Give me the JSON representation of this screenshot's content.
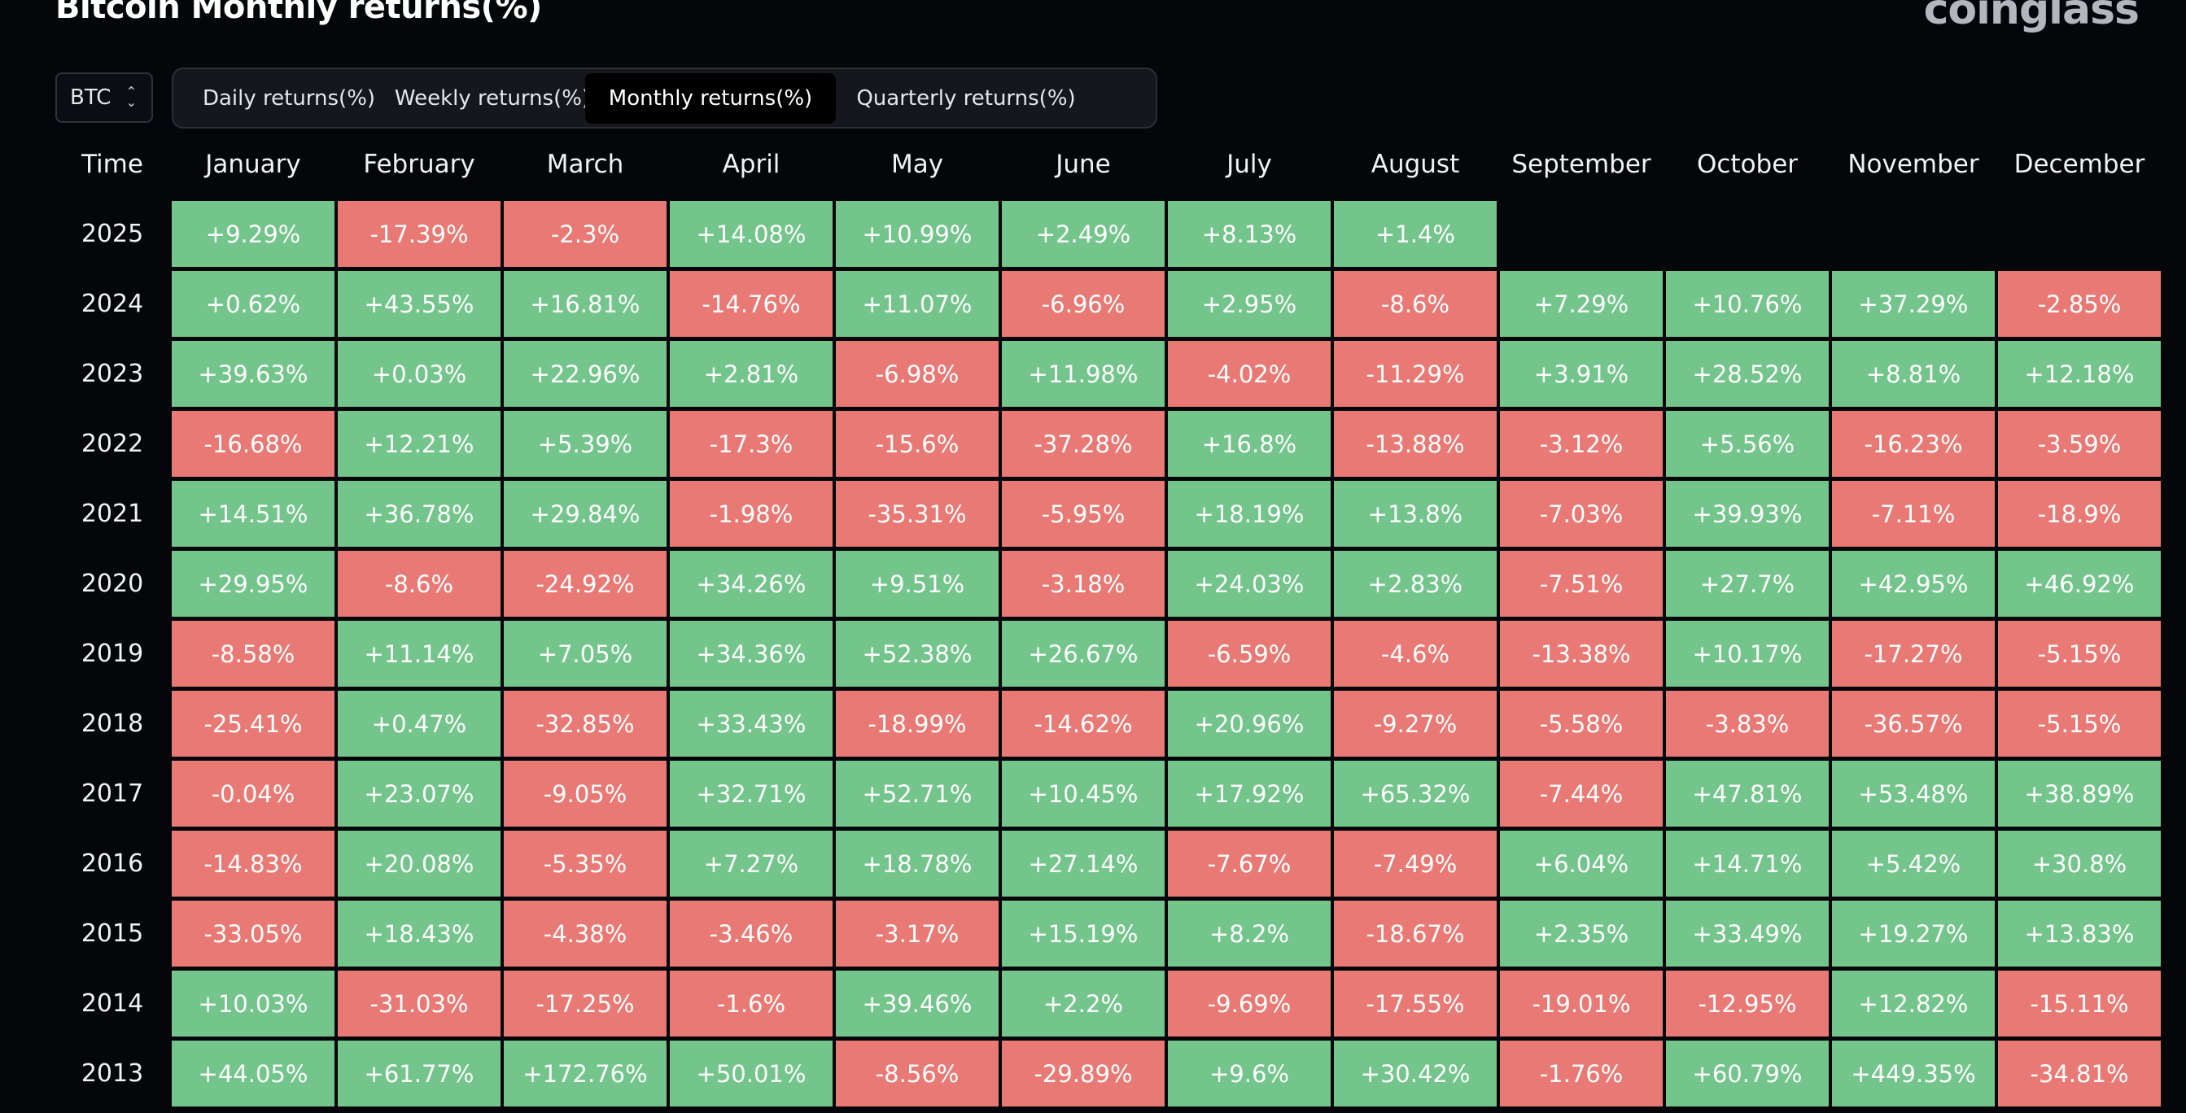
{
  "header": {
    "title": "Bitcoin Monthly returns(%)",
    "logo": "coinglass"
  },
  "selector": {
    "value": "BTC",
    "icon": "chevron-updown-icon"
  },
  "tabs": [
    {
      "label": "Daily returns(%)",
      "active": false
    },
    {
      "label": "Weekly returns(%)",
      "active": false
    },
    {
      "label": "Monthly returns(%)",
      "active": true
    },
    {
      "label": "Quarterly returns(%)",
      "active": false
    }
  ],
  "colors": {
    "positive": "#73c58b",
    "negative": "#e97974",
    "background": "#05060a"
  },
  "chart_data": {
    "type": "heatmap",
    "title": "Bitcoin Monthly returns(%)",
    "row_header": "Time",
    "columns": [
      "January",
      "February",
      "March",
      "April",
      "May",
      "June",
      "July",
      "August",
      "September",
      "October",
      "November",
      "December"
    ],
    "rows": [
      {
        "year": "2025",
        "values": [
          "+9.29%",
          "-17.39%",
          "-2.3%",
          "+14.08%",
          "+10.99%",
          "+2.49%",
          "+8.13%",
          "+1.4%",
          null,
          null,
          null,
          null
        ]
      },
      {
        "year": "2024",
        "values": [
          "+0.62%",
          "+43.55%",
          "+16.81%",
          "-14.76%",
          "+11.07%",
          "-6.96%",
          "+2.95%",
          "-8.6%",
          "+7.29%",
          "+10.76%",
          "+37.29%",
          "-2.85%"
        ]
      },
      {
        "year": "2023",
        "values": [
          "+39.63%",
          "+0.03%",
          "+22.96%",
          "+2.81%",
          "-6.98%",
          "+11.98%",
          "-4.02%",
          "-11.29%",
          "+3.91%",
          "+28.52%",
          "+8.81%",
          "+12.18%"
        ]
      },
      {
        "year": "2022",
        "values": [
          "-16.68%",
          "+12.21%",
          "+5.39%",
          "-17.3%",
          "-15.6%",
          "-37.28%",
          "+16.8%",
          "-13.88%",
          "-3.12%",
          "+5.56%",
          "-16.23%",
          "-3.59%"
        ]
      },
      {
        "year": "2021",
        "values": [
          "+14.51%",
          "+36.78%",
          "+29.84%",
          "-1.98%",
          "-35.31%",
          "-5.95%",
          "+18.19%",
          "+13.8%",
          "-7.03%",
          "+39.93%",
          "-7.11%",
          "-18.9%"
        ]
      },
      {
        "year": "2020",
        "values": [
          "+29.95%",
          "-8.6%",
          "-24.92%",
          "+34.26%",
          "+9.51%",
          "-3.18%",
          "+24.03%",
          "+2.83%",
          "-7.51%",
          "+27.7%",
          "+42.95%",
          "+46.92%"
        ]
      },
      {
        "year": "2019",
        "values": [
          "-8.58%",
          "+11.14%",
          "+7.05%",
          "+34.36%",
          "+52.38%",
          "+26.67%",
          "-6.59%",
          "-4.6%",
          "-13.38%",
          "+10.17%",
          "-17.27%",
          "-5.15%"
        ]
      },
      {
        "year": "2018",
        "values": [
          "-25.41%",
          "+0.47%",
          "-32.85%",
          "+33.43%",
          "-18.99%",
          "-14.62%",
          "+20.96%",
          "-9.27%",
          "-5.58%",
          "-3.83%",
          "-36.57%",
          "-5.15%"
        ]
      },
      {
        "year": "2017",
        "values": [
          "-0.04%",
          "+23.07%",
          "-9.05%",
          "+32.71%",
          "+52.71%",
          "+10.45%",
          "+17.92%",
          "+65.32%",
          "-7.44%",
          "+47.81%",
          "+53.48%",
          "+38.89%"
        ]
      },
      {
        "year": "2016",
        "values": [
          "-14.83%",
          "+20.08%",
          "-5.35%",
          "+7.27%",
          "+18.78%",
          "+27.14%",
          "-7.67%",
          "-7.49%",
          "+6.04%",
          "+14.71%",
          "+5.42%",
          "+30.8%"
        ]
      },
      {
        "year": "2015",
        "values": [
          "-33.05%",
          "+18.43%",
          "-4.38%",
          "-3.46%",
          "-3.17%",
          "+15.19%",
          "+8.2%",
          "-18.67%",
          "+2.35%",
          "+33.49%",
          "+19.27%",
          "+13.83%"
        ]
      },
      {
        "year": "2014",
        "values": [
          "+10.03%",
          "-31.03%",
          "-17.25%",
          "-1.6%",
          "+39.46%",
          "+2.2%",
          "-9.69%",
          "-17.55%",
          "-19.01%",
          "-12.95%",
          "+12.82%",
          "-15.11%"
        ]
      },
      {
        "year": "2013",
        "values": [
          "+44.05%",
          "+61.77%",
          "+172.76%",
          "+50.01%",
          "-8.56%",
          "-29.89%",
          "+9.6%",
          "+30.42%",
          "-1.76%",
          "+60.79%",
          "+449.35%",
          "-34.81%"
        ]
      }
    ]
  }
}
